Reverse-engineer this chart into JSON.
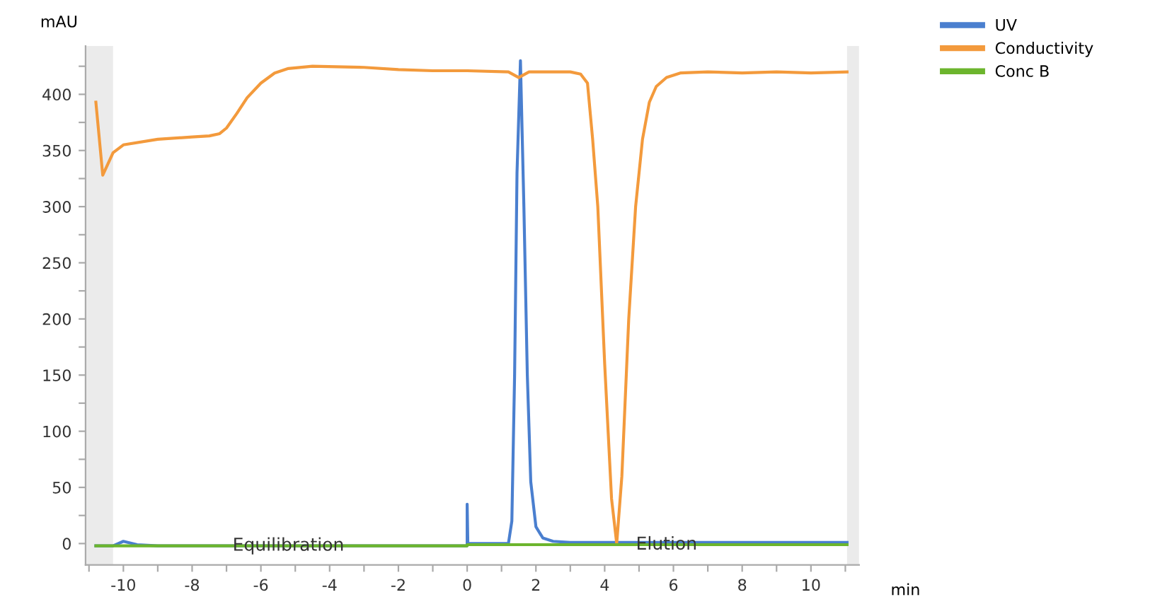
{
  "chart_data": {
    "type": "line",
    "ylabel": "mAU",
    "xlabel": "min",
    "xlim": [
      -11.1,
      11.4
    ],
    "ylim": [
      -19,
      443
    ],
    "xticks": [
      -10,
      -8,
      -6,
      -4,
      -2,
      0,
      2,
      4,
      6,
      8,
      10,
      {
        "value": -11,
        "label": null
      },
      {
        "value": -9,
        "label": null
      },
      {
        "value": -7,
        "label": null
      },
      {
        "value": -5,
        "label": null
      },
      {
        "value": -3,
        "label": null
      },
      {
        "value": -1,
        "label": null
      },
      {
        "value": 1,
        "label": null
      },
      {
        "value": 3,
        "label": null
      },
      {
        "value": 5,
        "label": null
      },
      {
        "value": 7,
        "label": null
      },
      {
        "value": 9,
        "label": null
      },
      {
        "value": 11,
        "label": null
      }
    ],
    "yticks": [
      0,
      50,
      100,
      150,
      200,
      250,
      300,
      350,
      400,
      {
        "value": 25,
        "label": null
      },
      {
        "value": 75,
        "label": null
      },
      {
        "value": 125,
        "label": null
      },
      {
        "value": 175,
        "label": null
      },
      {
        "value": 225,
        "label": null
      },
      {
        "value": 275,
        "label": null
      },
      {
        "value": 325,
        "label": null
      },
      {
        "value": 375,
        "label": null
      },
      {
        "value": 425,
        "label": null
      }
    ],
    "grid": false,
    "legend": "top right",
    "marker": "none",
    "line_style": "solid",
    "bands": [
      {
        "axis": "x",
        "from": -11.1,
        "to": -10.3,
        "color": "#ebebeb"
      },
      {
        "axis": "x",
        "from": 11.05,
        "to": 11.4,
        "color": "#ebebeb"
      }
    ],
    "annotations": [
      {
        "text": "Equilibration",
        "x": -5.2,
        "y": -2
      },
      {
        "text": "Elution",
        "x": 5.8,
        "y": -1
      }
    ],
    "series": [
      {
        "name": "UV",
        "color": "#4a7fcf",
        "x": [
          -10.8,
          -10.3,
          -10,
          -9.6,
          -9,
          -5,
          0,
          0,
          0.02,
          1.2,
          1.3,
          1.38,
          1.45,
          1.55,
          1.65,
          1.75,
          1.85,
          2.0,
          2.2,
          2.5,
          3,
          6,
          11.05
        ],
        "values": [
          -2,
          -2,
          2,
          -1,
          -2,
          -2,
          -2,
          35,
          0,
          0,
          20,
          150,
          330,
          430,
          300,
          150,
          55,
          15,
          5,
          2,
          1,
          1,
          1
        ]
      },
      {
        "name": "Conductivity",
        "color": "#f39a3c",
        "x": [
          -10.8,
          -10.6,
          -10.3,
          -10,
          -9,
          -8,
          -7.5,
          -7.2,
          -7,
          -6.7,
          -6.4,
          -6,
          -5.6,
          -5.2,
          -4.5,
          -3,
          -2,
          -1,
          0,
          1.2,
          1.5,
          1.8,
          3,
          3.3,
          3.5,
          3.65,
          3.8,
          4.0,
          4.2,
          4.35,
          4.5,
          4.7,
          4.9,
          5.1,
          5.3,
          5.5,
          5.8,
          6.2,
          7,
          8,
          9,
          10,
          11.05
        ],
        "values": [
          393,
          328,
          348,
          355,
          360,
          362,
          363,
          365,
          370,
          383,
          397,
          410,
          419,
          423,
          425,
          424,
          422,
          421,
          421,
          420,
          415,
          420,
          420,
          418,
          410,
          360,
          300,
          160,
          40,
          0,
          60,
          200,
          300,
          360,
          393,
          407,
          415,
          419,
          420,
          419,
          420,
          419,
          420
        ]
      },
      {
        "name": "Conc B",
        "color": "#6cb52d",
        "x": [
          -10.8,
          0,
          0,
          11.05
        ],
        "values": [
          -2,
          -2,
          -1,
          -1
        ]
      }
    ]
  }
}
